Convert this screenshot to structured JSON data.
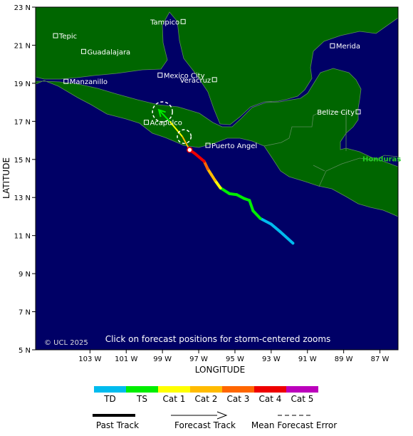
{
  "axes": {
    "y_title": "LATITUDE",
    "x_title": "LONGITUDE",
    "lat_ticks": [
      {
        "value": 23,
        "label": "23 N"
      },
      {
        "value": 21,
        "label": "21 N"
      },
      {
        "value": 19,
        "label": "19 N"
      },
      {
        "value": 17,
        "label": "17 N"
      },
      {
        "value": 15,
        "label": "15 N"
      },
      {
        "value": 13,
        "label": "13 N"
      },
      {
        "value": 11,
        "label": "11 N"
      },
      {
        "value": 9,
        "label": "9 N"
      },
      {
        "value": 7,
        "label": "7 N"
      },
      {
        "value": 5,
        "label": "5 N"
      }
    ],
    "lon_ticks": [
      {
        "value": -103,
        "label": "103 W"
      },
      {
        "value": -101,
        "label": "101 W"
      },
      {
        "value": -99,
        "label": "99 W"
      },
      {
        "value": -97,
        "label": "97 W"
      },
      {
        "value": -95,
        "label": "95 W"
      },
      {
        "value": -93,
        "label": "93 W"
      },
      {
        "value": -91,
        "label": "91 W"
      },
      {
        "value": -89,
        "label": "89 W"
      },
      {
        "value": -87,
        "label": "87 W"
      }
    ]
  },
  "cities": [
    {
      "name": "Tampico",
      "lon": -97.86,
      "lat": 22.24,
      "label_side": "left"
    },
    {
      "name": "Tepic",
      "lon": -104.9,
      "lat": 21.5,
      "label_side": "right"
    },
    {
      "name": "Guadalajara",
      "lon": -103.35,
      "lat": 20.67,
      "label_side": "right"
    },
    {
      "name": "Merida",
      "lon": -89.62,
      "lat": 20.97,
      "label_side": "right"
    },
    {
      "name": "Manzanillo",
      "lon": -104.32,
      "lat": 19.1,
      "label_side": "right"
    },
    {
      "name": "Mexico City",
      "lon": -99.13,
      "lat": 19.43,
      "label_side": "right"
    },
    {
      "name": "Veracruz",
      "lon": -96.13,
      "lat": 19.19,
      "label_side": "left"
    },
    {
      "name": "Belize City",
      "lon": -88.2,
      "lat": 17.5,
      "label_side": "left"
    },
    {
      "name": "Acapulco",
      "lon": -99.89,
      "lat": 16.95,
      "label_side": "right"
    },
    {
      "name": "Puerto Angel",
      "lon": -96.49,
      "lat": 15.74,
      "label_side": "right"
    }
  ],
  "country_labels": [
    {
      "name": "Honduras",
      "lon": -86.9,
      "lat": 14.9
    }
  ],
  "storm": {
    "past_track": [
      {
        "lon": -91.8,
        "lat": 10.6,
        "cat": "TD"
      },
      {
        "lon": -92.5,
        "lat": 11.2,
        "cat": "TD"
      },
      {
        "lon": -93.0,
        "lat": 11.6,
        "cat": "TD"
      },
      {
        "lon": -93.6,
        "lat": 11.9,
        "cat": "TD"
      },
      {
        "lon": -94.0,
        "lat": 12.3,
        "cat": "TS"
      },
      {
        "lon": -94.2,
        "lat": 12.85,
        "cat": "TS"
      },
      {
        "lon": -94.5,
        "lat": 12.95,
        "cat": "TS"
      },
      {
        "lon": -94.9,
        "lat": 13.15,
        "cat": "TS"
      },
      {
        "lon": -95.3,
        "lat": 13.2,
        "cat": "TS"
      },
      {
        "lon": -95.8,
        "lat": 13.5,
        "cat": "TS"
      },
      {
        "lon": -96.1,
        "lat": 13.9,
        "cat": "Cat 1"
      },
      {
        "lon": -96.3,
        "lat": 14.2,
        "cat": "Cat 2"
      },
      {
        "lon": -96.5,
        "lat": 14.5,
        "cat": "Cat 2"
      },
      {
        "lon": -96.7,
        "lat": 14.9,
        "cat": "Cat 3"
      },
      {
        "lon": -97.2,
        "lat": 15.3,
        "cat": "Cat 4"
      },
      {
        "lon": -97.5,
        "lat": 15.5,
        "cat": "Cat 4"
      }
    ],
    "current_position": {
      "lon": -97.5,
      "lat": 15.5
    },
    "forecast_track": [
      {
        "lon": -97.5,
        "lat": 15.5,
        "cat": "Cat 4"
      },
      {
        "lon": -97.9,
        "lat": 16.2,
        "cat": "Cat 2"
      },
      {
        "lon": -98.6,
        "lat": 17.0,
        "cat": "Cat 1"
      },
      {
        "lon": -99.2,
        "lat": 17.6,
        "cat": "TS"
      }
    ],
    "error_circles": [
      {
        "lon": -97.8,
        "lat": 16.2,
        "radius_deg": 0.38
      },
      {
        "lon": -99.0,
        "lat": 17.5,
        "radius_deg": 0.55
      }
    ]
  },
  "notice": "Click on forecast positions for storm-centered zooms",
  "copyright": "© UCL 2025",
  "legend": {
    "scale": [
      {
        "label": "TD",
        "color": "#00bbee"
      },
      {
        "label": "TS",
        "color": "#00ee00"
      },
      {
        "label": "Cat 1",
        "color": "#ffff00"
      },
      {
        "label": "Cat 2",
        "color": "#ffbb00"
      },
      {
        "label": "Cat 3",
        "color": "#ff6600"
      },
      {
        "label": "Cat 4",
        "color": "#ee0000"
      },
      {
        "label": "Cat 5",
        "color": "#bb00bb"
      }
    ],
    "past_track": "Past Track",
    "forecast_track": "Forecast Track",
    "mean_error": "Mean Forecast Error"
  },
  "colors": {
    "ocean": "#000066",
    "land": "#006600",
    "border": "#55aa55",
    "city_marker": "#ffffff"
  }
}
